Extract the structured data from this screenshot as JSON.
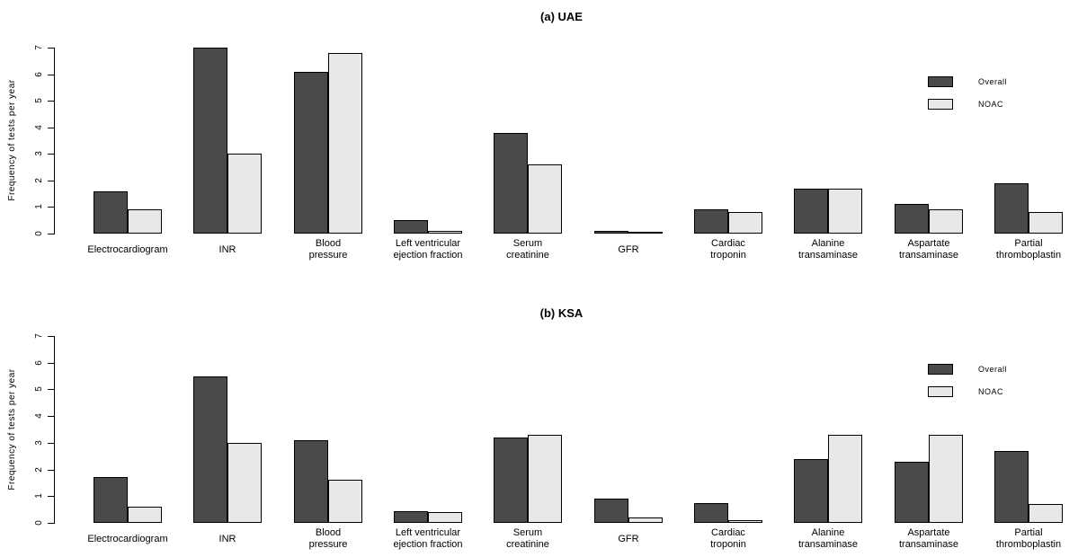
{
  "figure": {
    "background": "#ffffff",
    "bar_border": "#000000",
    "series_colors": {
      "overall": "#4a4a4a",
      "noac": "#e8e8e8"
    }
  },
  "chart_data": [
    {
      "type": "bar",
      "title": "(a) UAE",
      "ylabel": "Frequency of tests per year",
      "ylim": [
        0,
        7
      ],
      "yticks": [
        0,
        1,
        2,
        3,
        4,
        5,
        6,
        7
      ],
      "grid": false,
      "legend_position": "top-right",
      "legend": [
        "Overall",
        "NOAC"
      ],
      "categories": [
        "Electrocardiogram",
        "INR",
        "Blood pressure",
        "Left ventricular ejection fraction",
        "Serum creatinine",
        "GFR",
        "Cardiac troponin",
        "Alanine transaminase",
        "Aspartate transaminase",
        "Partial thromboplastin"
      ],
      "category_lines": [
        [
          "Electrocardiogram"
        ],
        [
          "INR"
        ],
        [
          "Blood",
          "pressure"
        ],
        [
          "Left ventricular",
          "ejection fraction"
        ],
        [
          "Serum",
          "creatinine"
        ],
        [
          "GFR"
        ],
        [
          "Cardiac",
          "troponin"
        ],
        [
          "Alanine",
          "transaminase"
        ],
        [
          "Aspartate",
          "transaminase"
        ],
        [
          "Partial",
          "thromboplastin"
        ]
      ],
      "series": [
        {
          "name": "Overall",
          "values": [
            1.6,
            7.0,
            6.1,
            0.5,
            3.8,
            0.1,
            0.9,
            1.7,
            1.1,
            1.9
          ]
        },
        {
          "name": "NOAC",
          "values": [
            0.9,
            3.0,
            6.8,
            0.1,
            2.6,
            0.08,
            0.8,
            1.7,
            0.9,
            0.8
          ]
        }
      ]
    },
    {
      "type": "bar",
      "title": "(b) KSA",
      "ylabel": "Frequency of tests per year",
      "ylim": [
        0,
        7
      ],
      "yticks": [
        0,
        1,
        2,
        3,
        4,
        5,
        6,
        7
      ],
      "grid": false,
      "legend_position": "top-right",
      "legend": [
        "Overall",
        "NOAC"
      ],
      "categories": [
        "Electrocardiogram",
        "INR",
        "Blood pressure",
        "Left ventricular ejection fraction",
        "Serum creatinine",
        "GFR",
        "Cardiac troponin",
        "Alanine transaminase",
        "Aspartate transaminase",
        "Partial thromboplastin"
      ],
      "category_lines": [
        [
          "Electrocardiogram"
        ],
        [
          "INR"
        ],
        [
          "Blood",
          "pressure"
        ],
        [
          "Left ventricular",
          "ejection fraction"
        ],
        [
          "Serum",
          "creatinine"
        ],
        [
          "GFR"
        ],
        [
          "Cardiac",
          "troponin"
        ],
        [
          "Alanine",
          "transaminase"
        ],
        [
          "Aspartate",
          "transaminase"
        ],
        [
          "Partial",
          "thromboplastin"
        ]
      ],
      "series": [
        {
          "name": "Overall",
          "values": [
            1.7,
            5.5,
            3.1,
            0.45,
            3.2,
            0.9,
            0.75,
            2.4,
            2.3,
            2.7
          ]
        },
        {
          "name": "NOAC",
          "values": [
            0.6,
            3.0,
            1.6,
            0.4,
            3.3,
            0.2,
            0.1,
            3.3,
            3.3,
            0.7
          ]
        }
      ]
    }
  ]
}
